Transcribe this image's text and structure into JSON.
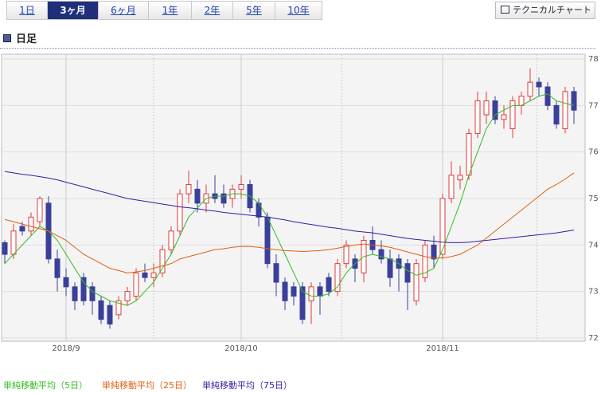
{
  "tabs": [
    "1日",
    "3ヶ月",
    "6ヶ月",
    "1年",
    "2年",
    "5年",
    "10年"
  ],
  "active_tab": 1,
  "tool_button": "テクニカルチャート",
  "section_title": "日足",
  "chart_data": {
    "type": "candlestick",
    "categories": [
      null,
      null,
      null,
      null,
      null,
      null,
      null,
      "2018/9",
      null,
      null,
      null,
      null,
      null,
      null,
      null,
      null,
      null,
      null,
      null,
      null,
      null,
      null,
      null,
      null,
      null,
      null,
      null,
      "2018/10",
      null,
      null,
      null,
      null,
      null,
      null,
      null,
      null,
      null,
      null,
      null,
      null,
      null,
      null,
      null,
      null,
      null,
      null,
      null,
      null,
      null,
      null,
      "2018/11",
      null,
      null,
      null,
      null,
      null,
      null,
      null,
      null,
      null,
      null,
      null,
      null,
      null,
      null,
      null
    ],
    "open": [
      74.05,
      73.8,
      74.4,
      74.3,
      74.5,
      74.9,
      73.7,
      73.3,
      73.1,
      73.3,
      73.1,
      72.8,
      72.7,
      72.5,
      72.8,
      72.9,
      73.4,
      73.3,
      73.4,
      73.9,
      74.3,
      75.1,
      75.2,
      74.9,
      75.1,
      75.1,
      75.0,
      75.2,
      75.3,
      74.9,
      74.6,
      73.6,
      73.2,
      73.1,
      73.1,
      72.8,
      73.1,
      73.3,
      73.0,
      73.6,
      73.7,
      73.4,
      74.1,
      73.9,
      73.7,
      73.7,
      73.6,
      72.8,
      73.3,
      74.0,
      73.8,
      75.0,
      75.4,
      75.5,
      76.4,
      76.8,
      77.1,
      76.7,
      76.5,
      77.0,
      77.2,
      77.5,
      77.4,
      77.0,
      76.5,
      77.3
    ],
    "high": [
      74.1,
      74.45,
      74.5,
      74.7,
      75.05,
      75.05,
      73.9,
      73.5,
      73.2,
      73.4,
      73.2,
      72.9,
      72.8,
      72.9,
      73.1,
      73.5,
      73.6,
      73.6,
      74.0,
      74.4,
      75.2,
      75.6,
      75.4,
      75.3,
      75.5,
      75.3,
      75.3,
      75.5,
      75.4,
      75.0,
      74.7,
      73.8,
      73.3,
      73.2,
      73.2,
      73.2,
      73.2,
      73.4,
      73.7,
      74.1,
      73.8,
      74.2,
      74.4,
      74.1,
      73.9,
      73.8,
      73.7,
      73.7,
      74.1,
      74.2,
      75.1,
      75.8,
      75.7,
      76.5,
      77.3,
      77.3,
      77.2,
      77.0,
      77.2,
      77.3,
      77.8,
      77.6,
      77.5,
      77.1,
      77.4,
      77.4
    ],
    "low": [
      73.6,
      73.7,
      74.2,
      74.2,
      74.4,
      73.6,
      73.0,
      72.9,
      72.6,
      72.7,
      72.5,
      72.3,
      72.2,
      72.4,
      72.7,
      72.8,
      73.2,
      73.1,
      73.3,
      73.8,
      74.2,
      74.9,
      74.7,
      74.7,
      74.9,
      74.8,
      74.8,
      75.0,
      74.7,
      74.4,
      73.5,
      72.9,
      72.6,
      72.7,
      72.3,
      72.3,
      72.5,
      72.9,
      72.9,
      73.5,
      73.2,
      73.2,
      73.8,
      73.6,
      73.1,
      73.0,
      72.6,
      72.7,
      73.2,
      73.5,
      73.7,
      74.9,
      75.2,
      75.4,
      76.3,
      76.6,
      76.6,
      76.5,
      76.3,
      76.8,
      77.1,
      77.2,
      76.9,
      76.5,
      76.4,
      76.6
    ],
    "close": [
      73.8,
      74.3,
      74.3,
      74.6,
      75.0,
      73.7,
      73.3,
      73.1,
      72.8,
      72.8,
      72.8,
      72.4,
      72.3,
      72.8,
      73.0,
      73.4,
      73.3,
      73.4,
      73.9,
      74.3,
      75.1,
      75.3,
      74.9,
      75.1,
      75.0,
      74.9,
      75.2,
      75.3,
      74.8,
      74.6,
      73.6,
      73.2,
      72.8,
      72.9,
      72.4,
      73.1,
      72.9,
      73.0,
      73.6,
      74.0,
      73.5,
      74.1,
      73.9,
      73.7,
      73.3,
      73.5,
      73.2,
      73.6,
      74.0,
      73.7,
      75.0,
      75.5,
      75.5,
      76.4,
      77.1,
      77.1,
      76.7,
      76.8,
      77.1,
      77.2,
      77.5,
      77.4,
      77.0,
      76.6,
      77.3,
      76.9
    ],
    "up_color": "#e03a3a",
    "down_color": "#3a3f9a",
    "series": [
      {
        "name": "単純移動平均（5日）",
        "color": "#33bb22",
        "values": [
          73.6,
          73.8,
          74.0,
          74.2,
          74.4,
          74.3,
          74.1,
          73.8,
          73.5,
          73.2,
          73.0,
          72.9,
          72.8,
          72.75,
          72.7,
          72.8,
          73.0,
          73.2,
          73.5,
          73.8,
          74.2,
          74.6,
          74.8,
          75.0,
          75.05,
          75.05,
          75.1,
          75.1,
          75.05,
          74.9,
          74.6,
          74.2,
          73.8,
          73.4,
          73.0,
          72.9,
          72.9,
          72.95,
          73.1,
          73.4,
          73.6,
          73.75,
          73.8,
          73.75,
          73.7,
          73.6,
          73.45,
          73.35,
          73.4,
          73.5,
          73.9,
          74.4,
          74.9,
          75.5,
          76.0,
          76.5,
          76.8,
          76.9,
          77.0,
          77.0,
          77.1,
          77.2,
          77.25,
          77.1,
          77.05,
          77.0
        ]
      },
      {
        "name": "単純移動平均（25日）",
        "color": "#e06010",
        "values": [
          74.55,
          74.5,
          74.45,
          74.4,
          74.35,
          74.3,
          74.2,
          74.1,
          73.95,
          73.8,
          73.7,
          73.6,
          73.5,
          73.45,
          73.4,
          73.42,
          73.45,
          73.5,
          73.55,
          73.6,
          73.7,
          73.75,
          73.8,
          73.85,
          73.9,
          73.92,
          73.95,
          73.97,
          73.97,
          73.95,
          73.92,
          73.9,
          73.88,
          73.87,
          73.86,
          73.87,
          73.88,
          73.9,
          73.93,
          73.97,
          74.0,
          74.02,
          74.0,
          73.98,
          73.95,
          73.9,
          73.85,
          73.8,
          73.75,
          73.72,
          73.72,
          73.75,
          73.8,
          73.9,
          74.0,
          74.15,
          74.3,
          74.45,
          74.6,
          74.75,
          74.9,
          75.05,
          75.2,
          75.3,
          75.42,
          75.55
        ]
      },
      {
        "name": "単純移動平均（75日）",
        "color": "#3a1aa0",
        "values": [
          75.58,
          75.55,
          75.52,
          75.5,
          75.47,
          75.44,
          75.4,
          75.35,
          75.3,
          75.25,
          75.2,
          75.15,
          75.1,
          75.05,
          75.0,
          74.97,
          74.94,
          74.91,
          74.88,
          74.85,
          74.82,
          74.8,
          74.78,
          74.75,
          74.73,
          74.7,
          74.68,
          74.66,
          74.64,
          74.62,
          74.6,
          74.57,
          74.54,
          74.5,
          74.47,
          74.44,
          74.41,
          74.38,
          74.36,
          74.33,
          74.3,
          74.28,
          74.26,
          74.23,
          74.2,
          74.17,
          74.14,
          74.12,
          74.1,
          74.08,
          74.06,
          74.05,
          74.05,
          74.06,
          74.08,
          74.1,
          74.12,
          74.14,
          74.16,
          74.18,
          74.2,
          74.22,
          74.24,
          74.26,
          74.29,
          74.32
        ]
      }
    ],
    "ylim": [
      72,
      78
    ],
    "yticks": [
      72,
      73,
      74,
      75,
      76,
      77,
      78
    ],
    "grid": true
  }
}
